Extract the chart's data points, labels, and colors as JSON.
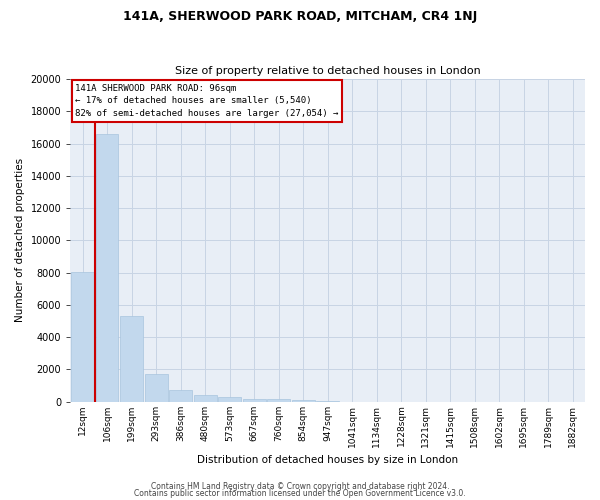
{
  "title_line1": "141A, SHERWOOD PARK ROAD, MITCHAM, CR4 1NJ",
  "title_line2": "Size of property relative to detached houses in London",
  "xlabel": "Distribution of detached houses by size in London",
  "ylabel": "Number of detached properties",
  "categories": [
    "12sqm",
    "106sqm",
    "199sqm",
    "293sqm",
    "386sqm",
    "480sqm",
    "573sqm",
    "667sqm",
    "760sqm",
    "854sqm",
    "947sqm",
    "1041sqm",
    "1134sqm",
    "1228sqm",
    "1321sqm",
    "1415sqm",
    "1508sqm",
    "1602sqm",
    "1695sqm",
    "1789sqm",
    "1882sqm"
  ],
  "bar_heights": [
    8050,
    16600,
    5300,
    1750,
    700,
    400,
    280,
    200,
    150,
    80,
    40,
    15,
    8,
    4,
    2,
    1,
    1,
    0,
    0,
    0,
    0
  ],
  "bar_color": "#c2d8ed",
  "bar_edge_color": "#a8c4de",
  "vline_x": 0.5,
  "vline_color": "#cc0000",
  "annotation_text_line1": "141A SHERWOOD PARK ROAD: 96sqm",
  "annotation_text_line2": "← 17% of detached houses are smaller (5,540)",
  "annotation_text_line3": "82% of semi-detached houses are larger (27,054) →",
  "annotation_box_color": "#ffffff",
  "annotation_box_edge": "#cc0000",
  "ylim": [
    0,
    20000
  ],
  "yticks": [
    0,
    2000,
    4000,
    6000,
    8000,
    10000,
    12000,
    14000,
    16000,
    18000,
    20000
  ],
  "footer_line1": "Contains HM Land Registry data © Crown copyright and database right 2024.",
  "footer_line2": "Contains public sector information licensed under the Open Government Licence v3.0.",
  "background_color": "#ffffff",
  "axes_bg_color": "#e8eef6",
  "grid_color": "#c8d4e4",
  "title1_fontsize": 9,
  "title2_fontsize": 8,
  "ylabel_fontsize": 7.5,
  "xlabel_fontsize": 7.5,
  "tick_fontsize": 6.5,
  "annot_fontsize": 6.5,
  "footer_fontsize": 5.5
}
